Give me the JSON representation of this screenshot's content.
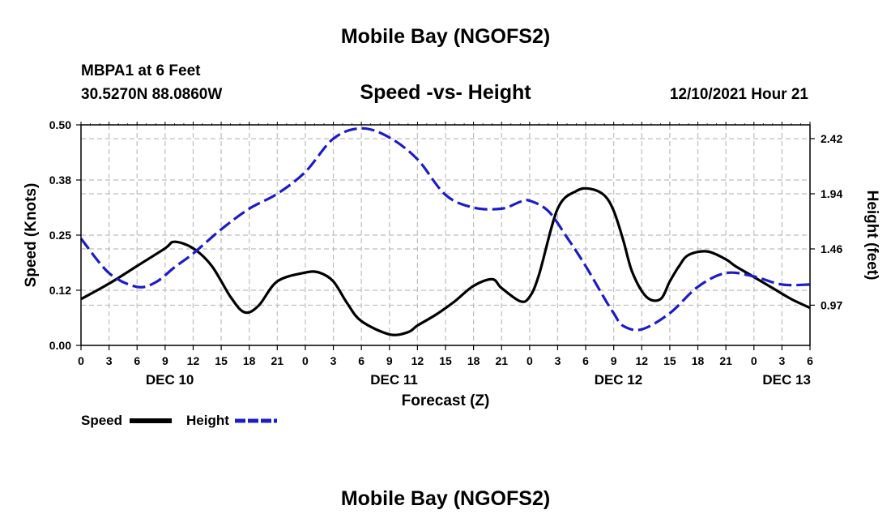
{
  "page": {
    "title_top": "Mobile Bay (NGOFS2)",
    "title_bottom": "Mobile Bay (NGOFS2)",
    "station_name": "MBPA1 at 6 Feet",
    "station_coords": "30.5270N  88.0860W",
    "chart_subtitle": "Speed -vs- Height",
    "timestamp": "12/10/2021 Hour 21"
  },
  "legend": {
    "speed_label": "Speed",
    "height_label": "Height"
  },
  "colors": {
    "speed": "#000000",
    "height": "#1c1cc8",
    "grid": "#bdbdbd"
  },
  "chart_data": {
    "type": "line",
    "title": "Speed -vs- Height",
    "xlabel": "Forecast (Z)",
    "ylabel": "Speed (Knots)",
    "ylabel_right": "Height (feet)",
    "xlim": [
      0,
      78
    ],
    "ylim": [
      0,
      0.5
    ],
    "ylim_right": [
      0.62,
      2.54
    ],
    "yticks": [
      "0.00",
      "0.12",
      "0.25",
      "0.38",
      "0.50"
    ],
    "ytick_values": [
      0,
      0.125,
      0.25,
      0.375,
      0.5
    ],
    "yticks_right": [
      "0.97",
      "1.46",
      "1.94",
      "2.42"
    ],
    "ytick_values_right": [
      0.97,
      1.46,
      1.94,
      2.42
    ],
    "x_tick_hours": [
      0,
      3,
      6,
      9,
      12,
      15,
      18,
      21,
      24,
      27,
      30,
      33,
      36,
      39,
      42,
      45,
      48,
      51,
      54,
      57,
      60,
      63,
      66,
      69,
      72,
      75,
      78
    ],
    "x_tick_labels": [
      "0",
      "3",
      "6",
      "9",
      "12",
      "15",
      "18",
      "21",
      "0",
      "3",
      "6",
      "9",
      "12",
      "15",
      "18",
      "21",
      "0",
      "3",
      "6",
      "9",
      "12",
      "15",
      "18",
      "21",
      "0",
      "3",
      "6"
    ],
    "date_labels": [
      {
        "hour": 9.5,
        "label": "DEC 10"
      },
      {
        "hour": 33.5,
        "label": "DEC 11"
      },
      {
        "hour": 57.5,
        "label": "DEC 12"
      },
      {
        "hour": 75.5,
        "label": "DEC 13"
      }
    ],
    "grid": true,
    "series": [
      {
        "name": "Speed",
        "axis": "left",
        "style": "solid",
        "x": [
          0,
          3,
          6,
          9,
          10,
          12,
          14,
          16,
          17.5,
          19,
          21,
          24,
          25.5,
          27,
          28.5,
          30,
          33,
          35,
          36,
          38,
          40,
          42,
          44,
          45,
          47,
          48,
          49,
          51,
          53,
          54.5,
          56,
          57,
          58,
          59,
          60.5,
          62,
          63,
          64,
          65,
          67,
          69,
          70,
          72,
          74,
          76,
          78
        ],
        "values": [
          0.105,
          0.14,
          0.18,
          0.22,
          0.235,
          0.22,
          0.18,
          0.11,
          0.075,
          0.09,
          0.145,
          0.165,
          0.165,
          0.145,
          0.095,
          0.055,
          0.025,
          0.03,
          0.045,
          0.07,
          0.1,
          0.135,
          0.15,
          0.13,
          0.1,
          0.11,
          0.16,
          0.31,
          0.35,
          0.355,
          0.34,
          0.305,
          0.24,
          0.165,
          0.11,
          0.105,
          0.145,
          0.18,
          0.205,
          0.213,
          0.195,
          0.18,
          0.155,
          0.13,
          0.105,
          0.085
        ]
      },
      {
        "name": "Height",
        "axis": "right",
        "style": "dashed",
        "x": [
          0,
          3,
          6,
          8,
          10,
          12,
          15,
          18,
          21,
          24,
          27,
          30,
          33,
          36,
          39,
          42,
          45,
          47,
          48,
          50,
          52,
          54,
          56,
          57,
          58,
          60,
          63,
          66,
          69,
          72,
          75,
          78
        ],
        "values": [
          1.55,
          1.25,
          1.13,
          1.17,
          1.3,
          1.42,
          1.63,
          1.81,
          1.94,
          2.13,
          2.42,
          2.51,
          2.43,
          2.24,
          1.93,
          1.82,
          1.81,
          1.87,
          1.88,
          1.79,
          1.56,
          1.31,
          1.03,
          0.9,
          0.79,
          0.76,
          0.9,
          1.13,
          1.25,
          1.22,
          1.15,
          1.15
        ]
      }
    ]
  }
}
